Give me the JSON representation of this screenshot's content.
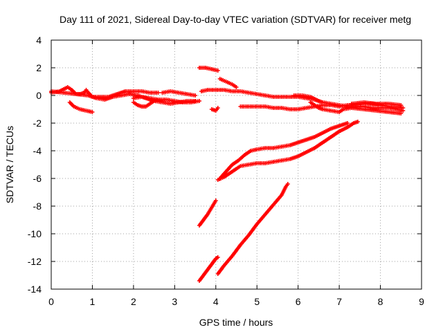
{
  "chart_data": {
    "type": "scatter",
    "title": "Day 111 of 2021, Sidereal Day-to-day VTEC variation (SDTVAR) for receiver metg",
    "xlabel": "GPS time / hours",
    "ylabel": "SDTVAR / TECUs",
    "xlim": [
      0,
      9
    ],
    "ylim": [
      -14,
      4
    ],
    "xticks": [
      0,
      1,
      2,
      3,
      4,
      5,
      6,
      7,
      8,
      9
    ],
    "yticks": [
      4,
      2,
      0,
      -2,
      -4,
      -6,
      -8,
      -10,
      -12,
      -14
    ],
    "grid": true,
    "marker": "+",
    "color": "#ff0000",
    "series": [
      {
        "values": [
          [
            0.0,
            0.2
          ],
          [
            0.2,
            0.3
          ],
          [
            0.4,
            0.6
          ],
          [
            0.5,
            0.4
          ],
          [
            0.6,
            0.1
          ],
          [
            0.7,
            0.1
          ],
          [
            0.8,
            0.2
          ],
          [
            0.85,
            0.4
          ],
          [
            0.9,
            0.2
          ],
          [
            1.0,
            -0.1
          ],
          [
            1.2,
            -0.1
          ],
          [
            1.4,
            -0.1
          ],
          [
            1.6,
            0.1
          ],
          [
            1.8,
            0.3
          ],
          [
            2.0,
            0.3
          ],
          [
            2.2,
            0.3
          ],
          [
            2.4,
            0.2
          ],
          [
            2.6,
            0.2
          ]
        ]
      },
      {
        "values": [
          [
            0.0,
            0.3
          ],
          [
            0.3,
            0.2
          ],
          [
            0.6,
            0.1
          ],
          [
            0.9,
            0.0
          ],
          [
            1.1,
            -0.2
          ],
          [
            1.3,
            -0.3
          ],
          [
            1.5,
            -0.1
          ],
          [
            1.7,
            0.0
          ],
          [
            1.9,
            0.1
          ],
          [
            2.1,
            0.0
          ],
          [
            2.3,
            -0.2
          ],
          [
            2.5,
            -0.4
          ],
          [
            2.7,
            -0.5
          ],
          [
            2.9,
            -0.6
          ],
          [
            3.1,
            -0.5
          ],
          [
            3.3,
            -0.4
          ],
          [
            3.5,
            -0.4
          ]
        ]
      },
      {
        "values": [
          [
            2.0,
            -0.2
          ],
          [
            2.2,
            -0.1
          ],
          [
            2.4,
            -0.2
          ],
          [
            2.6,
            -0.3
          ],
          [
            2.8,
            -0.3
          ],
          [
            3.0,
            -0.4
          ],
          [
            3.2,
            -0.5
          ],
          [
            3.4,
            -0.5
          ],
          [
            3.6,
            -0.4
          ]
        ]
      },
      {
        "values": [
          [
            2.7,
            0.2
          ],
          [
            2.9,
            0.3
          ],
          [
            3.1,
            0.2
          ],
          [
            3.3,
            0.1
          ],
          [
            3.5,
            0.0
          ]
        ]
      },
      {
        "values": [
          [
            2.0,
            -0.5
          ],
          [
            2.1,
            -0.7
          ],
          [
            2.2,
            -0.8
          ],
          [
            2.3,
            -0.8
          ],
          [
            2.4,
            -0.6
          ],
          [
            2.5,
            -0.4
          ],
          [
            2.6,
            -0.3
          ]
        ]
      },
      {
        "values": [
          [
            0.45,
            -0.5
          ],
          [
            0.55,
            -0.8
          ],
          [
            0.7,
            -1.0
          ],
          [
            0.85,
            -1.1
          ],
          [
            1.0,
            -1.2
          ]
        ]
      },
      {
        "values": [
          [
            3.6,
            2.0
          ],
          [
            3.75,
            2.0
          ],
          [
            3.9,
            1.9
          ],
          [
            4.05,
            1.8
          ]
        ]
      },
      {
        "values": [
          [
            3.9,
            -1.0
          ],
          [
            4.0,
            -1.1
          ],
          [
            4.05,
            -0.9
          ]
        ]
      },
      {
        "values": [
          [
            4.1,
            1.2
          ],
          [
            4.25,
            1.0
          ],
          [
            4.4,
            0.8
          ],
          [
            4.5,
            0.6
          ]
        ]
      },
      {
        "values": [
          [
            3.65,
            0.3
          ],
          [
            3.8,
            0.4
          ],
          [
            4.0,
            0.4
          ],
          [
            4.2,
            0.4
          ],
          [
            4.4,
            0.3
          ],
          [
            4.6,
            0.3
          ],
          [
            4.8,
            0.2
          ],
          [
            5.0,
            0.1
          ],
          [
            5.2,
            0.0
          ],
          [
            5.4,
            -0.1
          ],
          [
            5.6,
            -0.1
          ],
          [
            5.8,
            -0.1
          ],
          [
            6.0,
            -0.1
          ],
          [
            6.2,
            -0.2
          ],
          [
            6.4,
            -0.3
          ],
          [
            6.5,
            -0.4
          ],
          [
            6.6,
            -0.5
          ],
          [
            6.8,
            -0.6
          ],
          [
            7.0,
            -0.7
          ],
          [
            7.2,
            -0.8
          ],
          [
            7.4,
            -0.8
          ],
          [
            7.6,
            -0.8
          ],
          [
            7.8,
            -0.9
          ],
          [
            8.0,
            -0.9
          ],
          [
            8.2,
            -0.9
          ],
          [
            8.4,
            -1.0
          ],
          [
            8.55,
            -1.1
          ]
        ]
      },
      {
        "values": [
          [
            4.6,
            -0.8
          ],
          [
            4.8,
            -0.8
          ],
          [
            5.0,
            -0.8
          ],
          [
            5.2,
            -0.8
          ],
          [
            5.4,
            -0.9
          ],
          [
            5.6,
            -0.9
          ],
          [
            5.8,
            -1.0
          ],
          [
            6.0,
            -1.0
          ],
          [
            6.2,
            -0.9
          ],
          [
            6.4,
            -0.8
          ],
          [
            6.6,
            -0.7
          ],
          [
            6.8,
            -0.7
          ],
          [
            7.0,
            -0.8
          ],
          [
            7.2,
            -0.7
          ],
          [
            7.4,
            -0.7
          ],
          [
            7.6,
            -0.6
          ],
          [
            7.8,
            -0.6
          ],
          [
            8.0,
            -0.7
          ],
          [
            8.2,
            -0.8
          ],
          [
            8.4,
            -0.9
          ],
          [
            8.55,
            -0.9
          ]
        ]
      },
      {
        "values": [
          [
            6.3,
            -0.5
          ],
          [
            6.4,
            -0.7
          ],
          [
            6.5,
            -0.9
          ],
          [
            6.6,
            -1.0
          ],
          [
            6.8,
            -1.1
          ],
          [
            7.0,
            -1.2
          ],
          [
            7.1,
            -1.0
          ],
          [
            7.3,
            -0.9
          ],
          [
            7.6,
            -1.0
          ],
          [
            7.9,
            -1.1
          ],
          [
            8.2,
            -1.2
          ],
          [
            8.5,
            -1.3
          ]
        ]
      },
      {
        "values": [
          [
            7.3,
            -0.6
          ],
          [
            7.6,
            -0.5
          ],
          [
            7.9,
            -0.6
          ],
          [
            8.2,
            -0.6
          ],
          [
            8.5,
            -0.7
          ]
        ]
      },
      {
        "values": [
          [
            5.9,
            0.0
          ],
          [
            6.1,
            0.0
          ],
          [
            6.3,
            -0.1
          ],
          [
            6.5,
            -0.4
          ]
        ]
      },
      {
        "values": [
          [
            4.05,
            -6.1
          ],
          [
            4.2,
            -5.9
          ],
          [
            4.35,
            -5.6
          ],
          [
            4.5,
            -5.3
          ],
          [
            4.6,
            -5.1
          ],
          [
            4.8,
            -5.0
          ],
          [
            5.0,
            -4.9
          ],
          [
            5.2,
            -4.9
          ],
          [
            5.4,
            -4.8
          ],
          [
            5.6,
            -4.7
          ],
          [
            5.8,
            -4.6
          ],
          [
            6.0,
            -4.4
          ],
          [
            6.2,
            -4.1
          ],
          [
            6.4,
            -3.8
          ],
          [
            6.6,
            -3.4
          ],
          [
            6.8,
            -3.0
          ],
          [
            7.0,
            -2.6
          ],
          [
            7.2,
            -2.3
          ],
          [
            7.35,
            -2.0
          ],
          [
            7.45,
            -1.9
          ]
        ]
      },
      {
        "values": [
          [
            4.1,
            -6.0
          ],
          [
            4.25,
            -5.5
          ],
          [
            4.4,
            -5.0
          ],
          [
            4.55,
            -4.7
          ],
          [
            4.7,
            -4.3
          ],
          [
            4.85,
            -4.0
          ],
          [
            5.0,
            -3.9
          ],
          [
            5.2,
            -3.8
          ],
          [
            5.4,
            -3.8
          ],
          [
            5.6,
            -3.7
          ],
          [
            5.8,
            -3.6
          ],
          [
            6.0,
            -3.4
          ],
          [
            6.2,
            -3.2
          ],
          [
            6.4,
            -3.0
          ],
          [
            6.6,
            -2.7
          ],
          [
            6.8,
            -2.4
          ],
          [
            7.0,
            -2.2
          ],
          [
            7.2,
            -2.0
          ]
        ]
      },
      {
        "values": [
          [
            3.6,
            -9.4
          ],
          [
            3.7,
            -9.0
          ],
          [
            3.8,
            -8.6
          ],
          [
            3.9,
            -8.1
          ],
          [
            4.0,
            -7.6
          ]
        ]
      },
      {
        "values": [
          [
            3.6,
            -13.4
          ],
          [
            3.7,
            -13.0
          ],
          [
            3.8,
            -12.6
          ],
          [
            3.9,
            -12.2
          ],
          [
            4.0,
            -11.8
          ],
          [
            4.05,
            -11.7
          ]
        ]
      },
      {
        "values": [
          [
            4.05,
            -12.9
          ],
          [
            4.2,
            -12.3
          ],
          [
            4.4,
            -11.6
          ],
          [
            4.6,
            -10.8
          ],
          [
            4.8,
            -10.1
          ],
          [
            5.0,
            -9.3
          ],
          [
            5.2,
            -8.6
          ],
          [
            5.4,
            -7.9
          ],
          [
            5.6,
            -7.2
          ],
          [
            5.7,
            -6.6
          ],
          [
            5.75,
            -6.4
          ]
        ]
      }
    ]
  }
}
